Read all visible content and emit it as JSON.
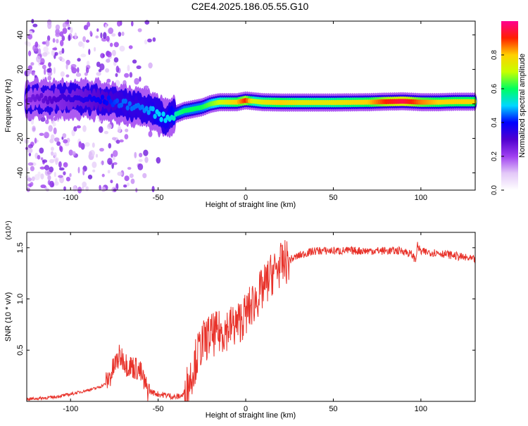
{
  "title": "C2E4.2025.186.05.55.G10",
  "chart_data": [
    {
      "type": "heatmap",
      "xlabel": "Height of straight line (km)",
      "ylabel": "Frequency (Hz)",
      "xlim": [
        -125,
        131
      ],
      "ylim": [
        -50,
        48
      ],
      "xticks": [
        -100,
        -50,
        0,
        50,
        100
      ],
      "yticks": [
        -40,
        -20,
        0,
        20,
        40
      ],
      "colorbar": {
        "label": "Normalized spectral amplitude",
        "range": [
          0,
          1
        ],
        "ticks": [
          "0.0",
          "0.2",
          "0.4",
          "0.6",
          "0.8"
        ],
        "tick_values": [
          0,
          0.2,
          0.4,
          0.6,
          0.8
        ],
        "colormap": [
          "#ffffff",
          "#e3c8f8",
          "#a040f0",
          "#5000d0",
          "#0000ff",
          "#00d8ff",
          "#00ff60",
          "#c8ff00",
          "#ffd000",
          "#ff2000",
          "#ff0090"
        ]
      },
      "ridge": {
        "x": [
          -125,
          -110,
          -95,
          -80,
          -70,
          -60,
          -50,
          -45,
          -40,
          -35,
          -30,
          -25,
          -20,
          -15,
          -10,
          -5,
          0,
          5,
          10,
          20,
          30,
          50,
          70,
          80,
          90,
          100,
          110,
          120,
          131
        ],
        "y": [
          3,
          3,
          3,
          2,
          0,
          -2,
          -6,
          -9,
          -6,
          -4,
          -3,
          -2,
          0,
          1,
          1,
          1,
          2,
          1.5,
          1,
          0.8,
          0.8,
          0.8,
          1,
          1.3,
          1.5,
          1,
          1,
          1.3,
          1.3
        ],
        "amplitude": [
          0.25,
          0.3,
          0.35,
          0.4,
          0.45,
          0.45,
          0.5,
          0.5,
          0.55,
          0.6,
          0.6,
          0.6,
          0.65,
          0.7,
          0.75,
          0.8,
          0.9,
          0.7,
          0.75,
          0.8,
          0.75,
          0.75,
          0.8,
          0.9,
          0.95,
          0.85,
          0.8,
          0.8,
          0.8
        ]
      }
    },
    {
      "type": "line",
      "xlabel": "Height of straight line (km)",
      "ylabel": "SNR (10 * v/v)",
      "y_multiplier": "(x10⁴)",
      "xlim": [
        -125,
        131
      ],
      "ylim": [
        0,
        1.65
      ],
      "xticks": [
        -100,
        -50,
        0,
        50,
        100
      ],
      "yticks": [
        0.5,
        1.0,
        1.5
      ],
      "series": [
        {
          "color": "#e8322a",
          "x": [
            -125,
            -110,
            -100,
            -90,
            -85,
            -80,
            -77,
            -74,
            -72,
            -70,
            -68,
            -65,
            -62,
            -60,
            -57,
            -55,
            -50,
            -45,
            -40,
            -36,
            -34,
            -32,
            -30,
            -28,
            -25,
            -22,
            -20,
            -15,
            -10,
            -5,
            0,
            5,
            10,
            15,
            20,
            25,
            30,
            35,
            40,
            50,
            60,
            70,
            80,
            90,
            95,
            97,
            98,
            100,
            110,
            120,
            131
          ],
          "y": [
            0.02,
            0.04,
            0.07,
            0.11,
            0.13,
            0.17,
            0.26,
            0.38,
            0.44,
            0.42,
            0.36,
            0.34,
            0.32,
            0.28,
            0.14,
            0.1,
            0.07,
            0.06,
            0.04,
            0.06,
            0.12,
            0.22,
            0.32,
            0.44,
            0.56,
            0.62,
            0.64,
            0.67,
            0.72,
            0.75,
            0.85,
            0.98,
            1.1,
            1.25,
            1.33,
            1.38,
            1.42,
            1.45,
            1.47,
            1.47,
            1.47,
            1.47,
            1.47,
            1.47,
            1.43,
            1.38,
            1.52,
            1.46,
            1.45,
            1.42,
            1.38
          ]
        }
      ]
    }
  ]
}
